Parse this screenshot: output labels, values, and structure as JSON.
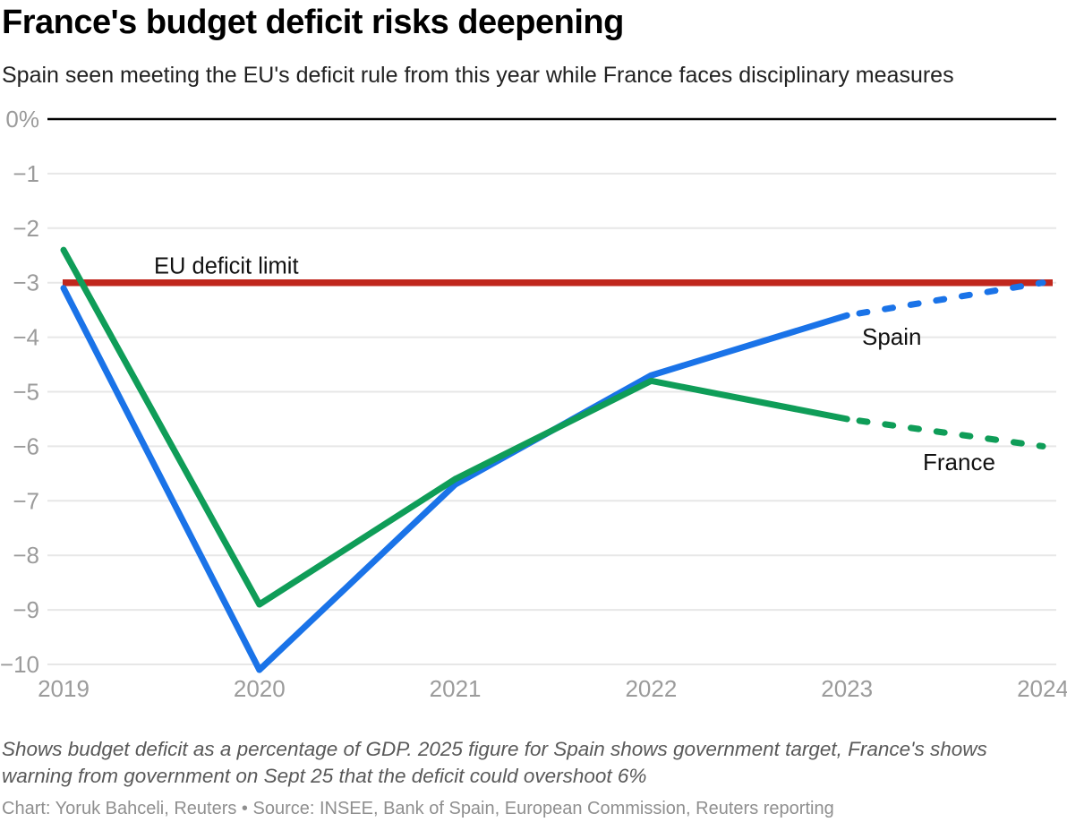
{
  "header": {
    "title": "France's budget deficit risks deepening",
    "subtitle": "Spain seen meeting the EU's deficit rule from this year while France faces disciplinary measures"
  },
  "chart_data": {
    "type": "line",
    "title": "France's budget deficit risks deepening",
    "subtitle": "Spain seen meeting the EU's deficit rule from this year while France faces disciplinary measures",
    "units": "budget deficit as % of GDP",
    "x": [
      2019,
      2020,
      2021,
      2022,
      2023,
      2024
    ],
    "x_tick_labels": [
      "2019",
      "2020",
      "2021",
      "2022",
      "2023",
      "2024"
    ],
    "y_ticks": [
      0,
      -1,
      -2,
      -3,
      -4,
      -5,
      -6,
      -7,
      -8,
      -9,
      -10
    ],
    "y_tick_labels": [
      "0%",
      "−1",
      "−2",
      "−3",
      "−4",
      "−5",
      "−6",
      "−7",
      "−8",
      "−9",
      "−10"
    ],
    "ylim": [
      -10.3,
      0
    ],
    "grid": true,
    "legend_position": "inline-labels",
    "series": [
      {
        "name": "Spain",
        "label": "Spain",
        "color": "#1a73e8",
        "values": [
          -3.1,
          -10.1,
          -6.7,
          -4.7,
          -3.6,
          -3.0
        ],
        "dashed_from_x": 2023,
        "dashed_note": "dashed segment 2023-2024 is a projection / government target"
      },
      {
        "name": "France",
        "label": "France",
        "color": "#0f9d58",
        "values": [
          -2.4,
          -8.9,
          -6.6,
          -4.8,
          -5.5,
          -6.0
        ],
        "dashed_from_x": 2023,
        "dashed_note": "dashed segment 2023-2024 is a projection / government warning"
      }
    ],
    "reference_line": {
      "label": "EU deficit limit",
      "value": -3,
      "color": "#c0271d"
    }
  },
  "annotations": {
    "eu_limit_label": "EU deficit limit",
    "spain_label": "Spain",
    "france_label": "France"
  },
  "footer": {
    "note": "Shows budget deficit as a percentage of GDP. 2025 figure for Spain shows government target, France's shows warning from government on Sept 25 that the deficit could overshoot 6%",
    "credit": "Chart: Yoruk Bahceli, Reuters • Source: INSEE, Bank of Spain, European Commission, Reuters reporting"
  },
  "colors": {
    "spain_line": "#1a73e8",
    "france_line": "#0f9d58",
    "eu_limit_line": "#c0271d",
    "zero_axis": "#000000",
    "gridline": "#e7e7e7",
    "tick_label": "#9b9b9b",
    "annotation_text": "#111111"
  }
}
